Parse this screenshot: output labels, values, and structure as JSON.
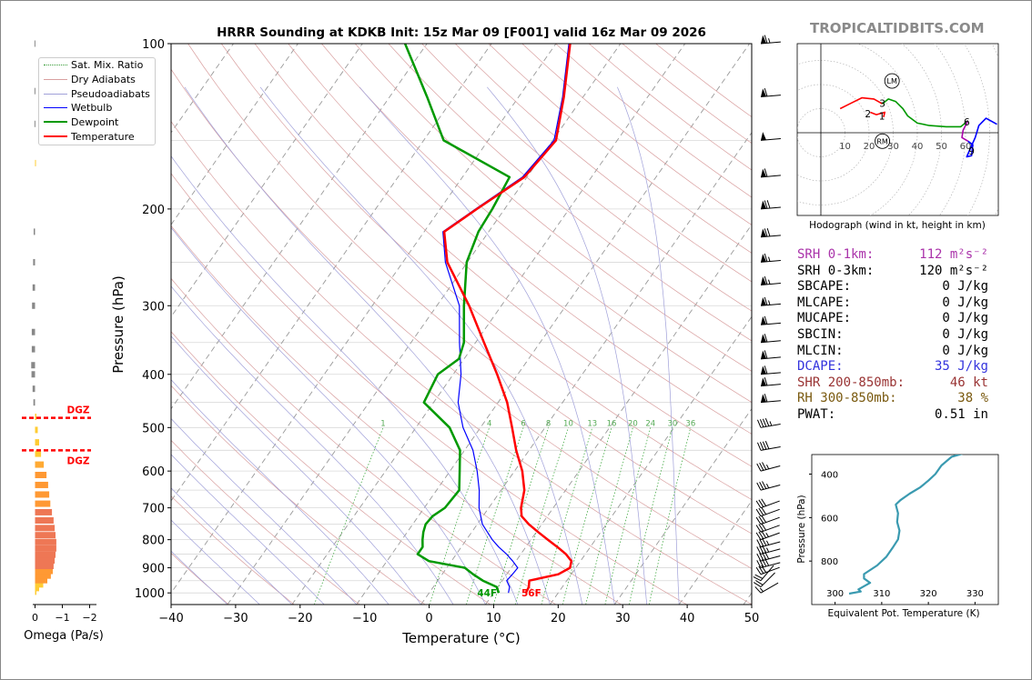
{
  "title": "HRRR Sounding at KDKB Init: 15z Mar 09 [F001] valid 16z Mar 09 2026",
  "brand": "TROPICALTIDBITS.COM",
  "colors": {
    "temperature": "#ff0000",
    "dewpoint": "#009900",
    "wetbulb": "#0000ff",
    "dgz": "#ff0000",
    "srh01": "#aa33aa",
    "dcape": "#3333dd",
    "shr": "#993333",
    "rh": "#7a5a10",
    "theta_e": "#3a9ab0"
  },
  "chart_data": [
    {
      "type": "line",
      "name": "skewt",
      "title": "HRRR Sounding at KDKB Init: 15z Mar 09 [F001] valid 16z Mar 09 2026",
      "xlabel": "Temperature (°C)",
      "ylabel": "Pressure (hPa)",
      "xlim": [
        -40,
        50
      ],
      "ylim": [
        1050,
        100
      ],
      "y_scale": "log",
      "x_ticks": [
        "−40",
        "−30",
        "−20",
        "−10",
        "0",
        "10",
        "20",
        "30",
        "40",
        "50"
      ],
      "x_tick_values": [
        -40,
        -30,
        -20,
        -10,
        0,
        10,
        20,
        30,
        40,
        50
      ],
      "y_ticks": [
        "100",
        "200",
        "300",
        "400",
        "500",
        "600",
        "700",
        "800",
        "900",
        "1000"
      ],
      "y_tick_values": [
        100,
        200,
        300,
        400,
        500,
        600,
        700,
        800,
        900,
        1000
      ],
      "legend": {
        "position": "top-left",
        "entries": [
          "Sat. Mix. Ratio",
          "Dry Adiabats",
          "Pseudoadiabats",
          "Wetbulb",
          "Dewpoint",
          "Temperature"
        ]
      },
      "mixing_ratio_labels": [
        "1",
        "4",
        "6",
        "8",
        "10",
        "13",
        "16",
        "20",
        "24",
        "30",
        "36"
      ],
      "mixing_ratio_values": [
        1,
        4,
        6,
        8,
        10,
        13,
        16,
        20,
        24,
        30,
        36
      ],
      "surface_labels": {
        "dewpoint": "44F",
        "temperature": "56F"
      },
      "series": [
        {
          "name": "Temperature",
          "pressure": [
            1000,
            975,
            950,
            925,
            900,
            875,
            850,
            825,
            800,
            775,
            750,
            725,
            700,
            650,
            600,
            550,
            500,
            450,
            400,
            350,
            300,
            250,
            220,
            200,
            175,
            150,
            125,
            100
          ],
          "values": [
            15.0,
            14.8,
            14.2,
            18.0,
            19.1,
            18.6,
            17.0,
            14.9,
            12.6,
            10.3,
            8.0,
            6.0,
            5.0,
            3.6,
            1.2,
            -2.0,
            -5.1,
            -8.6,
            -13.2,
            -18.7,
            -25.0,
            -33.1,
            -36.9,
            -34.3,
            -30.4,
            -29.5,
            -33.0,
            -37.8
          ]
        },
        {
          "name": "Dewpoint",
          "pressure": [
            1000,
            975,
            950,
            925,
            900,
            875,
            850,
            825,
            800,
            775,
            750,
            725,
            700,
            650,
            600,
            550,
            500,
            450,
            400,
            375,
            350,
            300,
            250,
            220,
            200,
            175,
            150,
            125,
            100
          ],
          "values": [
            10.8,
            9.8,
            7.0,
            4.8,
            2.8,
            -3.5,
            -6.0,
            -6.0,
            -6.8,
            -7.5,
            -8.0,
            -7.8,
            -6.8,
            -6.5,
            -8.5,
            -10.7,
            -14.8,
            -21.5,
            -22.4,
            -20.8,
            -21.8,
            -25.8,
            -30.1,
            -31.6,
            -31.9,
            -32.7,
            -46.9,
            -54.2,
            -63.4
          ]
        },
        {
          "name": "Wetbulb",
          "pressure": [
            1000,
            975,
            950,
            925,
            900,
            875,
            850,
            825,
            800,
            750,
            700,
            650,
            600,
            550,
            500,
            450,
            400,
            350,
            300,
            250,
            220,
            200,
            175,
            150,
            125,
            100
          ],
          "values": [
            12.3,
            11.8,
            10.7,
            10.9,
            11.0,
            9.5,
            7.8,
            5.8,
            4.0,
            0.8,
            -1.5,
            -3.4,
            -5.8,
            -8.7,
            -12.7,
            -16.2,
            -18.8,
            -22.5,
            -26.5,
            -33.4,
            -37.1,
            -34.5,
            -30.7,
            -29.8,
            -33.2,
            -38.0
          ]
        }
      ]
    },
    {
      "type": "bar",
      "name": "omega",
      "xlabel": "Omega (Pa/s)",
      "x_ticks": [
        "0",
        "−1",
        "−2"
      ],
      "x_tick_values": [
        0,
        -1,
        -2
      ],
      "dgz_label": "DGZ",
      "dgz_pressures": [
        480,
        550
      ],
      "bars": [
        {
          "p": 995,
          "v": -0.05,
          "c": "#ffcc33"
        },
        {
          "p": 980,
          "v": -0.15,
          "c": "#ffcc33"
        },
        {
          "p": 965,
          "v": -0.3,
          "c": "#ffcc33"
        },
        {
          "p": 948,
          "v": -0.45,
          "c": "#ff9933"
        },
        {
          "p": 930,
          "v": -0.58,
          "c": "#ff9933"
        },
        {
          "p": 912,
          "v": -0.65,
          "c": "#ff9933"
        },
        {
          "p": 893,
          "v": -0.68,
          "c": "#ee7755"
        },
        {
          "p": 873,
          "v": -0.72,
          "c": "#ee7755"
        },
        {
          "p": 852,
          "v": -0.75,
          "c": "#ee7755"
        },
        {
          "p": 830,
          "v": -0.78,
          "c": "#ee7755"
        },
        {
          "p": 808,
          "v": -0.78,
          "c": "#ee7755"
        },
        {
          "p": 785,
          "v": -0.75,
          "c": "#ee7755"
        },
        {
          "p": 762,
          "v": -0.72,
          "c": "#ee7755"
        },
        {
          "p": 738,
          "v": -0.68,
          "c": "#ee7755"
        },
        {
          "p": 713,
          "v": -0.62,
          "c": "#ee7755"
        },
        {
          "p": 688,
          "v": -0.56,
          "c": "#ff9933"
        },
        {
          "p": 662,
          "v": -0.52,
          "c": "#ff9933"
        },
        {
          "p": 636,
          "v": -0.48,
          "c": "#ff9933"
        },
        {
          "p": 610,
          "v": -0.42,
          "c": "#ff9933"
        },
        {
          "p": 584,
          "v": -0.32,
          "c": "#ffaa33"
        },
        {
          "p": 558,
          "v": -0.22,
          "c": "#ffcc33"
        },
        {
          "p": 532,
          "v": -0.15,
          "c": "#ffcc33"
        },
        {
          "p": 505,
          "v": -0.1,
          "c": "#ffcc33"
        },
        {
          "p": 478,
          "v": -0.05,
          "c": "#ffcc33"
        },
        {
          "p": 450,
          "v": 0.06,
          "c": "#888888"
        },
        {
          "p": 425,
          "v": 0.09,
          "c": "#888888"
        },
        {
          "p": 400,
          "v": 0.13,
          "c": "#888888"
        },
        {
          "p": 385,
          "v": 0.14,
          "c": "#888888"
        },
        {
          "p": 360,
          "v": 0.12,
          "c": "#888888"
        },
        {
          "p": 335,
          "v": 0.12,
          "c": "#888888"
        },
        {
          "p": 300,
          "v": 0.11,
          "c": "#888888"
        },
        {
          "p": 278,
          "v": 0.09,
          "c": "#888888"
        },
        {
          "p": 250,
          "v": 0.07,
          "c": "#888888"
        },
        {
          "p": 220,
          "v": 0.05,
          "c": "#888888"
        },
        {
          "p": 165,
          "v": -0.02,
          "c": "#ffcc33"
        },
        {
          "p": 140,
          "v": 0.02,
          "c": "#888888"
        },
        {
          "p": 122,
          "v": 0.02,
          "c": "#888888"
        },
        {
          "p": 100,
          "v": 0.02,
          "c": "#888888"
        }
      ]
    },
    {
      "type": "line",
      "name": "hodograph",
      "caption": "Hodograph (wind in kt, height in km)",
      "ring_labels": [
        "10",
        "20",
        "30",
        "40",
        "50",
        "60"
      ],
      "ring_values": [
        10,
        20,
        30,
        40,
        50,
        60
      ],
      "point_labels": [
        {
          "t": "1",
          "u": 25.3,
          "v": 7.0
        },
        {
          "t": "2",
          "u": 19.5,
          "v": 8.0
        },
        {
          "t": "3",
          "u": 25.5,
          "v": 12.2
        },
        {
          "t": "6",
          "u": 60.5,
          "v": 4.5
        },
        {
          "t": "9",
          "u": 62.5,
          "v": -7.5
        }
      ],
      "markers": [
        {
          "t": "LM",
          "u": 29.5,
          "v": 21.5
        },
        {
          "t": "RM",
          "u": 25.5,
          "v": -3.5
        }
      ],
      "segments": [
        {
          "color": "#ff0000",
          "points": [
            [
              8,
              10
            ],
            [
              12,
              12
            ],
            [
              17,
              14.5
            ],
            [
              22,
              14
            ],
            [
              25.5,
              12
            ]
          ]
        },
        {
          "color": "#ff0000",
          "points": [
            [
              20.5,
              8.5
            ],
            [
              23,
              7.5
            ],
            [
              26.5,
              8.5
            ],
            [
              26,
              6.5
            ]
          ]
        },
        {
          "color": "#009900",
          "points": [
            [
              25.5,
              12
            ],
            [
              28,
              14
            ],
            [
              31,
              13
            ],
            [
              34,
              10
            ],
            [
              36,
              7
            ],
            [
              40,
              4
            ],
            [
              45,
              3
            ],
            [
              52,
              2.5
            ],
            [
              58,
              2.5
            ],
            [
              61,
              5
            ]
          ]
        },
        {
          "color": "#aa00aa",
          "points": [
            [
              61,
              5
            ],
            [
              59,
              1
            ],
            [
              58.5,
              -2
            ],
            [
              61,
              -3.5
            ]
          ]
        },
        {
          "color": "#0000ff",
          "points": [
            [
              61,
              -3.5
            ],
            [
              63,
              -5
            ],
            [
              62.5,
              -9.5
            ],
            [
              60.5,
              -10
            ],
            [
              62,
              -6.5
            ],
            [
              64,
              -2
            ],
            [
              65.5,
              3
            ],
            [
              68.5,
              6
            ],
            [
              73,
              3.5
            ]
          ]
        }
      ]
    },
    {
      "type": "line",
      "name": "theta_e",
      "xlabel": "Equivalent Pot. Temperature (K)",
      "ylabel": "Pressure (hPa)",
      "xlim": [
        295,
        335
      ],
      "ylim": [
        1000,
        310
      ],
      "x_ticks": [
        "300",
        "310",
        "320",
        "330"
      ],
      "x_tick_values": [
        300,
        310,
        320,
        330
      ],
      "y_ticks": [
        "400",
        "600",
        "800"
      ],
      "y_tick_values": [
        400,
        600,
        800
      ],
      "series": [
        {
          "name": "theta_e",
          "pressure": [
            950,
            940,
            930,
            900,
            880,
            860,
            820,
            780,
            740,
            700,
            660,
            620,
            580,
            540,
            520,
            490,
            460,
            430,
            400,
            360,
            320,
            305
          ],
          "values": [
            303.0,
            305.5,
            305.0,
            307.5,
            306.2,
            306.2,
            309.0,
            311.0,
            312.3,
            313.5,
            313.8,
            313.3,
            313.5,
            313.0,
            314.0,
            316.0,
            318.3,
            320.0,
            321.5,
            322.8,
            325.0,
            327.5
          ]
        }
      ]
    }
  ],
  "wind_barbs": [
    {
      "p": 1000,
      "spd": 15,
      "dir": 240
    },
    {
      "p": 975,
      "spd": 20,
      "dir": 225
    },
    {
      "p": 950,
      "spd": 20,
      "dir": 220
    },
    {
      "p": 925,
      "spd": 30,
      "dir": 250
    },
    {
      "p": 900,
      "spd": 40,
      "dir": 255
    },
    {
      "p": 875,
      "spd": 40,
      "dir": 255
    },
    {
      "p": 850,
      "spd": 35,
      "dir": 255
    },
    {
      "p": 825,
      "spd": 35,
      "dir": 255
    },
    {
      "p": 800,
      "spd": 35,
      "dir": 250
    },
    {
      "p": 775,
      "spd": 30,
      "dir": 250
    },
    {
      "p": 750,
      "spd": 30,
      "dir": 250
    },
    {
      "p": 725,
      "spd": 30,
      "dir": 250
    },
    {
      "p": 700,
      "spd": 30,
      "dir": 250
    },
    {
      "p": 650,
      "spd": 35,
      "dir": 255
    },
    {
      "p": 600,
      "spd": 35,
      "dir": 255
    },
    {
      "p": 550,
      "spd": 40,
      "dir": 260
    },
    {
      "p": 500,
      "spd": 45,
      "dir": 260
    },
    {
      "p": 450,
      "spd": 60,
      "dir": 265
    },
    {
      "p": 420,
      "spd": 60,
      "dir": 265
    },
    {
      "p": 400,
      "spd": 60,
      "dir": 265
    },
    {
      "p": 375,
      "spd": 60,
      "dir": 265
    },
    {
      "p": 350,
      "spd": 60,
      "dir": 265
    },
    {
      "p": 325,
      "spd": 60,
      "dir": 265
    },
    {
      "p": 300,
      "spd": 65,
      "dir": 265
    },
    {
      "p": 275,
      "spd": 65,
      "dir": 265
    },
    {
      "p": 250,
      "spd": 65,
      "dir": 265
    },
    {
      "p": 225,
      "spd": 70,
      "dir": 265
    },
    {
      "p": 200,
      "spd": 70,
      "dir": 265
    },
    {
      "p": 175,
      "spd": 60,
      "dir": 265
    },
    {
      "p": 150,
      "spd": 50,
      "dir": 265
    },
    {
      "p": 125,
      "spd": 60,
      "dir": 265
    },
    {
      "p": 100,
      "spd": 65,
      "dir": 265
    }
  ],
  "stats": [
    {
      "label": "SRH 0-1km:",
      "value": "112 m²s⁻²",
      "color": "#aa33aa"
    },
    {
      "label": "SRH 0-3km:",
      "value": "120 m²s⁻²",
      "color": "#000000"
    },
    {
      "label": "SBCAPE:",
      "value": "0 J/kg",
      "color": "#000000"
    },
    {
      "label": "MLCAPE:",
      "value": "0 J/kg",
      "color": "#000000"
    },
    {
      "label": "MUCAPE:",
      "value": "0 J/kg",
      "color": "#000000"
    },
    {
      "label": "SBCIN:",
      "value": "0 J/kg",
      "color": "#000000"
    },
    {
      "label": "MLCIN:",
      "value": "0 J/kg",
      "color": "#000000"
    },
    {
      "label": "DCAPE:",
      "value": "35 J/kg",
      "color": "#3333dd"
    },
    {
      "label": "SHR 200-850mb:",
      "value": "46 kt",
      "color": "#993333"
    },
    {
      "label": "RH 300-850mb:",
      "value": "38 %",
      "color": "#7a5a10"
    },
    {
      "label": "PWAT:",
      "value": "0.51 in",
      "color": "#000000"
    }
  ]
}
